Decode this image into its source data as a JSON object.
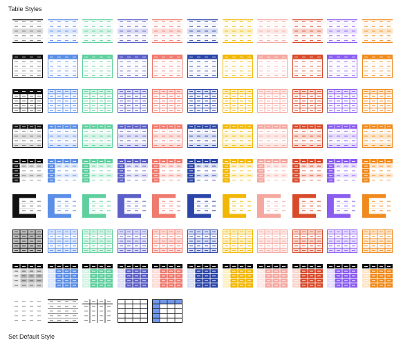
{
  "panel": {
    "title": "Table Styles",
    "footer_label": "Set Default Style"
  },
  "palette": [
    {
      "name": "black",
      "hex": "#111111",
      "tint": "#dcdcdc"
    },
    {
      "name": "light-blue",
      "hex": "#5b8ee6",
      "tint": "#dbe6fa"
    },
    {
      "name": "mint",
      "hex": "#5fcf9e",
      "tint": "#d5f3e6"
    },
    {
      "name": "indigo",
      "hex": "#5b5fc7",
      "tint": "#dcdcf5"
    },
    {
      "name": "salmon",
      "hex": "#ef7a6e",
      "tint": "#fbdcd8"
    },
    {
      "name": "navy",
      "hex": "#2a44a8",
      "tint": "#d6dcf2"
    },
    {
      "name": "gold",
      "hex": "#f2b705",
      "tint": "#fcefc4"
    },
    {
      "name": "pink",
      "hex": "#f4a8a0",
      "tint": "#fde7e4"
    },
    {
      "name": "red-orange",
      "hex": "#d94a2b",
      "tint": "#f7d5cc"
    },
    {
      "name": "purple",
      "hex": "#8a5cf0",
      "tint": "#e5dcfc"
    },
    {
      "name": "orange",
      "hex": "#f08a1c",
      "tint": "#fde4c8"
    }
  ],
  "style_rows": [
    {
      "variant": "rules-light"
    },
    {
      "variant": "header-banded"
    },
    {
      "variant": "full-grid"
    },
    {
      "variant": "header-grid"
    },
    {
      "variant": "first-column"
    },
    {
      "variant": "header-and-column"
    },
    {
      "variant": "grid-banded"
    },
    {
      "variant": "dark-filled"
    }
  ],
  "extra_styles": [
    {
      "variant": "plain"
    },
    {
      "variant": "horizontal-rules"
    },
    {
      "variant": "vertical-rules"
    },
    {
      "variant": "simple-grid"
    },
    {
      "variant": "accent-grid"
    }
  ]
}
